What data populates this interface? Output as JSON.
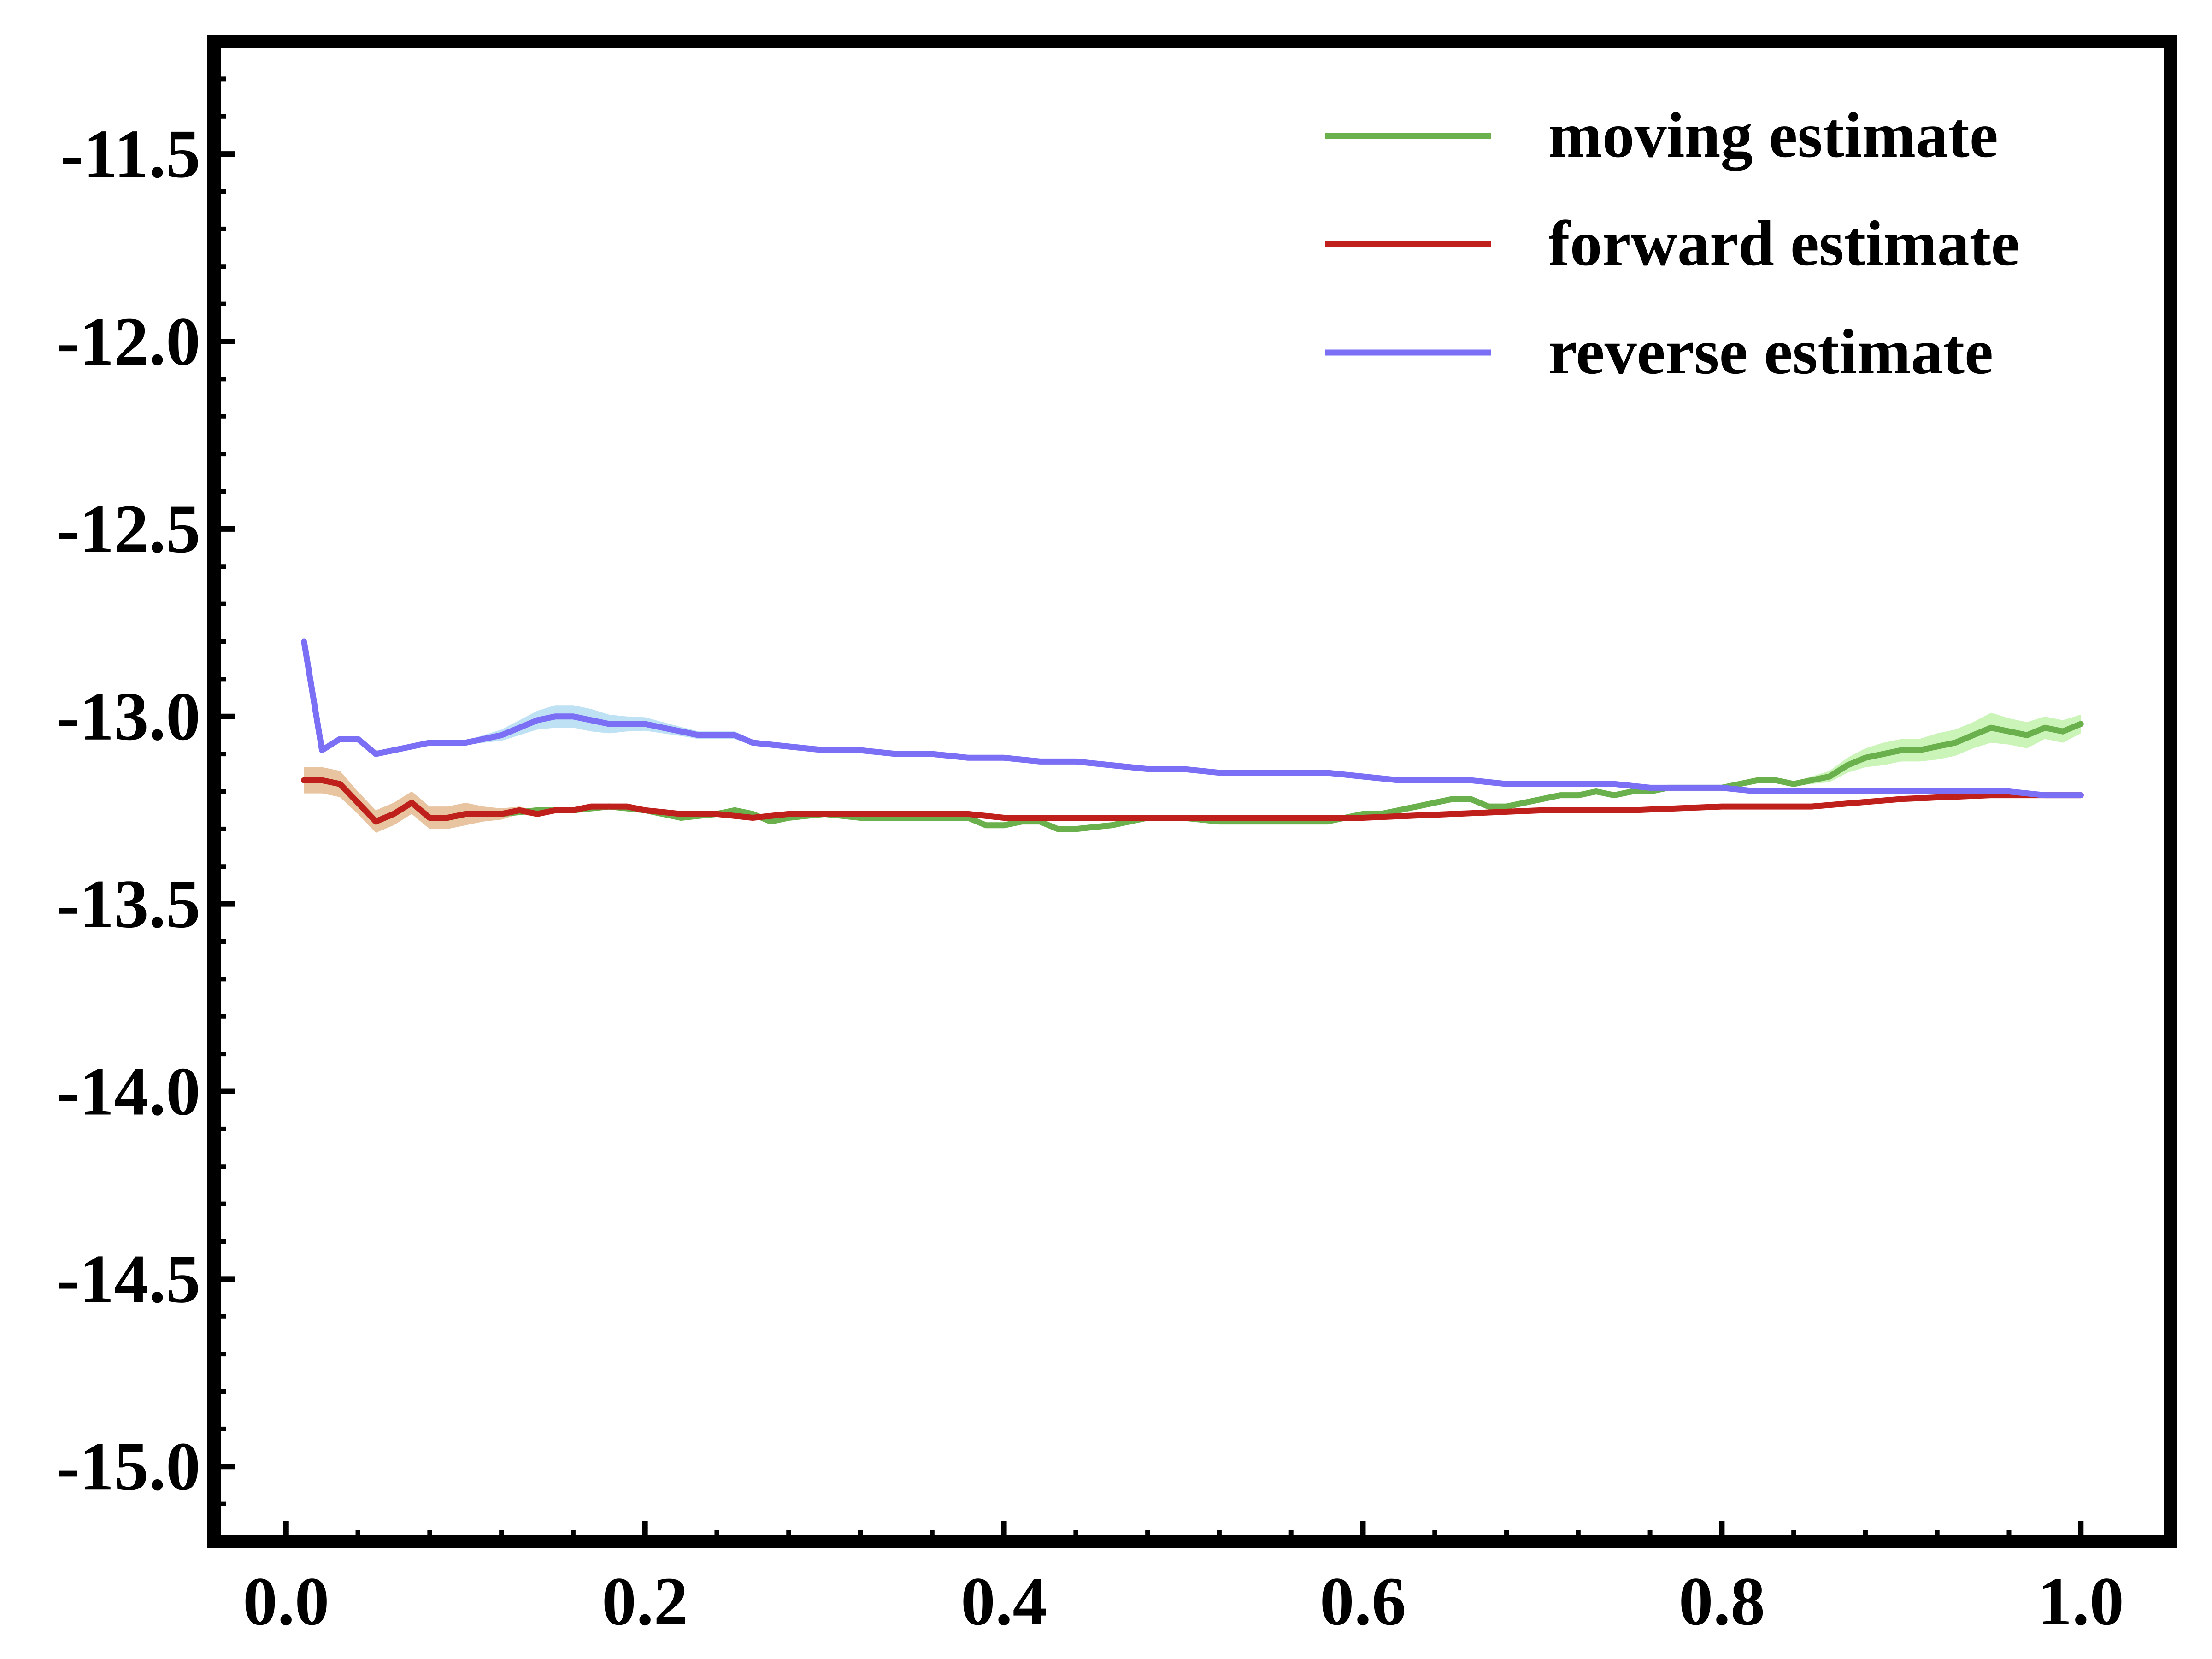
{
  "chart_data": {
    "type": "line",
    "title": "",
    "xlabel": "",
    "ylabel": "",
    "xlim": [
      -0.04,
      1.05
    ],
    "ylim": [
      -15.2,
      -11.2
    ],
    "x_ticks": [
      0.0,
      0.2,
      0.4,
      0.6,
      0.8,
      1.0
    ],
    "x_tick_labels": [
      "0.0",
      "0.2",
      "0.4",
      "0.6",
      "0.8",
      "1.0"
    ],
    "y_ticks": [
      -15.0,
      -14.5,
      -14.0,
      -13.5,
      -13.0,
      -12.5,
      -12.0,
      -11.5
    ],
    "y_tick_labels": [
      "-15.0",
      "-14.5",
      "-14.0",
      "-13.5",
      "-13.0",
      "-12.5",
      "-12.0",
      "-11.5"
    ],
    "grid": false,
    "legend_position": "top-right",
    "series": [
      {
        "name": "moving estimate",
        "color": "#6ab04c",
        "band_color": "#b8f0a0",
        "x": [
          0.01,
          0.02,
          0.03,
          0.04,
          0.05,
          0.06,
          0.07,
          0.08,
          0.09,
          0.1,
          0.12,
          0.14,
          0.16,
          0.18,
          0.2,
          0.22,
          0.24,
          0.25,
          0.26,
          0.27,
          0.28,
          0.3,
          0.32,
          0.34,
          0.36,
          0.38,
          0.39,
          0.4,
          0.41,
          0.42,
          0.43,
          0.44,
          0.46,
          0.48,
          0.5,
          0.52,
          0.54,
          0.56,
          0.58,
          0.59,
          0.6,
          0.61,
          0.62,
          0.63,
          0.64,
          0.65,
          0.66,
          0.67,
          0.68,
          0.69,
          0.7,
          0.71,
          0.72,
          0.73,
          0.74,
          0.75,
          0.76,
          0.77,
          0.78,
          0.79,
          0.8,
          0.81,
          0.82,
          0.83,
          0.84,
          0.85,
          0.86,
          0.87,
          0.88,
          0.89,
          0.9,
          0.91,
          0.92,
          0.93,
          0.94,
          0.95,
          0.96,
          0.97,
          0.98,
          0.99,
          1.0
        ],
        "y": [
          -13.17,
          -13.17,
          -13.18,
          -13.23,
          -13.28,
          -13.26,
          -13.23,
          -13.27,
          -13.27,
          -13.26,
          -13.26,
          -13.25,
          -13.25,
          -13.24,
          -13.25,
          -13.27,
          -13.26,
          -13.25,
          -13.26,
          -13.28,
          -13.27,
          -13.26,
          -13.27,
          -13.27,
          -13.27,
          -13.27,
          -13.29,
          -13.29,
          -13.28,
          -13.28,
          -13.3,
          -13.3,
          -13.29,
          -13.27,
          -13.27,
          -13.28,
          -13.28,
          -13.28,
          -13.28,
          -13.27,
          -13.26,
          -13.26,
          -13.25,
          -13.24,
          -13.23,
          -13.22,
          -13.22,
          -13.24,
          -13.24,
          -13.23,
          -13.22,
          -13.21,
          -13.21,
          -13.2,
          -13.21,
          -13.2,
          -13.2,
          -13.19,
          -13.19,
          -13.19,
          -13.19,
          -13.18,
          -13.17,
          -13.17,
          -13.18,
          -13.17,
          -13.16,
          -13.13,
          -13.11,
          -13.1,
          -13.09,
          -13.09,
          -13.08,
          -13.07,
          -13.05,
          -13.03,
          -13.04,
          -13.05,
          -13.03,
          -13.04,
          -13.02
        ],
        "band": [
          0.006,
          0.006,
          0.006,
          0.006,
          0.006,
          0.006,
          0.006,
          0.006,
          0.006,
          0.006,
          0.006,
          0.006,
          0.006,
          0.006,
          0.006,
          0.006,
          0.006,
          0.006,
          0.006,
          0.006,
          0.006,
          0.006,
          0.006,
          0.006,
          0.006,
          0.006,
          0.006,
          0.006,
          0.006,
          0.006,
          0.006,
          0.006,
          0.006,
          0.006,
          0.006,
          0.006,
          0.006,
          0.006,
          0.006,
          0.006,
          0.006,
          0.006,
          0.006,
          0.006,
          0.006,
          0.006,
          0.006,
          0.006,
          0.006,
          0.006,
          0.006,
          0.006,
          0.006,
          0.006,
          0.006,
          0.006,
          0.006,
          0.006,
          0.006,
          0.006,
          0.006,
          0.006,
          0.006,
          0.006,
          0.006,
          0.01,
          0.015,
          0.02,
          0.025,
          0.03,
          0.03,
          0.03,
          0.035,
          0.035,
          0.035,
          0.04,
          0.035,
          0.035,
          0.03,
          0.03,
          0.025
        ]
      },
      {
        "name": "forward estimate",
        "color": "#c0201c",
        "band_color": "#e0b080",
        "x": [
          0.01,
          0.02,
          0.03,
          0.04,
          0.05,
          0.06,
          0.07,
          0.08,
          0.09,
          0.1,
          0.11,
          0.12,
          0.13,
          0.14,
          0.15,
          0.16,
          0.17,
          0.18,
          0.19,
          0.2,
          0.22,
          0.24,
          0.26,
          0.28,
          0.3,
          0.32,
          0.34,
          0.36,
          0.38,
          0.4,
          0.42,
          0.44,
          0.46,
          0.48,
          0.5,
          0.55,
          0.6,
          0.65,
          0.7,
          0.75,
          0.8,
          0.85,
          0.9,
          0.95,
          1.0
        ],
        "y": [
          -13.17,
          -13.17,
          -13.18,
          -13.23,
          -13.28,
          -13.26,
          -13.23,
          -13.27,
          -13.27,
          -13.26,
          -13.26,
          -13.26,
          -13.25,
          -13.26,
          -13.25,
          -13.25,
          -13.24,
          -13.24,
          -13.24,
          -13.25,
          -13.26,
          -13.26,
          -13.27,
          -13.26,
          -13.26,
          -13.26,
          -13.26,
          -13.26,
          -13.26,
          -13.27,
          -13.27,
          -13.27,
          -13.27,
          -13.27,
          -13.27,
          -13.27,
          -13.27,
          -13.26,
          -13.25,
          -13.25,
          -13.24,
          -13.24,
          -13.22,
          -13.21,
          -13.21
        ],
        "band": [
          0.035,
          0.035,
          0.035,
          0.03,
          0.03,
          0.03,
          0.03,
          0.03,
          0.03,
          0.03,
          0.02,
          0.015,
          0.01,
          0.008,
          0.006,
          0.006,
          0.006,
          0.006,
          0.006,
          0.006,
          0.006,
          0.006,
          0.006,
          0.006,
          0.006,
          0.006,
          0.006,
          0.006,
          0.006,
          0.006,
          0.006,
          0.006,
          0.006,
          0.006,
          0.006,
          0.006,
          0.006,
          0.006,
          0.006,
          0.006,
          0.006,
          0.006,
          0.006,
          0.006,
          0.006
        ]
      },
      {
        "name": "reverse estimate",
        "color": "#7a6ff5",
        "band_color": "#a8d8f0",
        "x": [
          0.01,
          0.02,
          0.03,
          0.04,
          0.05,
          0.06,
          0.07,
          0.08,
          0.09,
          0.1,
          0.11,
          0.12,
          0.13,
          0.14,
          0.15,
          0.16,
          0.17,
          0.18,
          0.19,
          0.2,
          0.21,
          0.22,
          0.23,
          0.24,
          0.25,
          0.26,
          0.28,
          0.3,
          0.32,
          0.34,
          0.36,
          0.38,
          0.4,
          0.42,
          0.44,
          0.46,
          0.48,
          0.5,
          0.52,
          0.54,
          0.56,
          0.58,
          0.6,
          0.62,
          0.64,
          0.66,
          0.68,
          0.7,
          0.72,
          0.74,
          0.76,
          0.78,
          0.8,
          0.82,
          0.84,
          0.86,
          0.88,
          0.9,
          0.92,
          0.94,
          0.96,
          0.98,
          1.0
        ],
        "y": [
          -12.8,
          -13.09,
          -13.06,
          -13.06,
          -13.1,
          -13.09,
          -13.08,
          -13.07,
          -13.07,
          -13.07,
          -13.06,
          -13.05,
          -13.03,
          -13.01,
          -13.0,
          -13.0,
          -13.01,
          -13.02,
          -13.02,
          -13.02,
          -13.03,
          -13.04,
          -13.05,
          -13.05,
          -13.05,
          -13.07,
          -13.08,
          -13.09,
          -13.09,
          -13.1,
          -13.1,
          -13.11,
          -13.11,
          -13.12,
          -13.12,
          -13.13,
          -13.14,
          -13.14,
          -13.15,
          -13.15,
          -13.15,
          -13.15,
          -13.16,
          -13.17,
          -13.17,
          -13.17,
          -13.18,
          -13.18,
          -13.18,
          -13.18,
          -13.19,
          -13.19,
          -13.19,
          -13.2,
          -13.2,
          -13.2,
          -13.2,
          -13.2,
          -13.2,
          -13.2,
          -13.2,
          -13.21,
          -13.21
        ],
        "band": [
          0.006,
          0.006,
          0.006,
          0.006,
          0.006,
          0.006,
          0.006,
          0.006,
          0.006,
          0.006,
          0.01,
          0.015,
          0.02,
          0.025,
          0.03,
          0.03,
          0.03,
          0.025,
          0.02,
          0.018,
          0.015,
          0.012,
          0.01,
          0.01,
          0.01,
          0.008,
          0.008,
          0.008,
          0.006,
          0.006,
          0.006,
          0.006,
          0.006,
          0.006,
          0.006,
          0.006,
          0.006,
          0.006,
          0.006,
          0.006,
          0.006,
          0.006,
          0.006,
          0.006,
          0.006,
          0.006,
          0.006,
          0.006,
          0.006,
          0.006,
          0.006,
          0.006,
          0.006,
          0.006,
          0.006,
          0.006,
          0.006,
          0.006,
          0.006,
          0.006,
          0.006,
          0.006,
          0.006
        ]
      }
    ]
  }
}
